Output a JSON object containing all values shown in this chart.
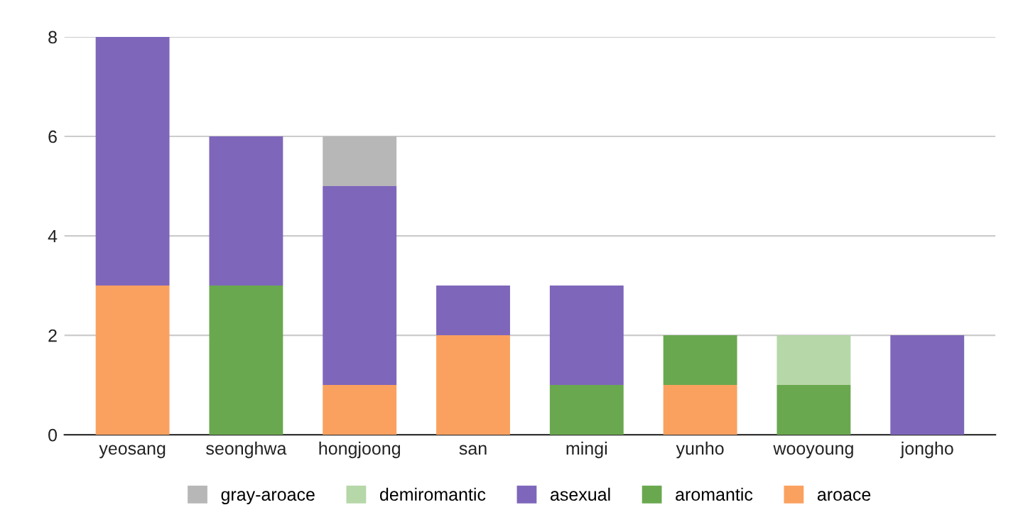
{
  "chart_data": {
    "type": "bar",
    "stacked": true,
    "categories": [
      "yeosang",
      "seonghwa",
      "hongjoong",
      "san",
      "mingi",
      "yunho",
      "wooyoung",
      "jongho"
    ],
    "series": [
      {
        "name": "aroace",
        "color": "#fba15f",
        "values": [
          3,
          null,
          1,
          2,
          null,
          1,
          null,
          null
        ]
      },
      {
        "name": "aromantic",
        "color": "#6aa84f",
        "values": [
          null,
          3,
          null,
          null,
          1,
          1,
          1,
          null
        ]
      },
      {
        "name": "asexual",
        "color": "#7e66bb",
        "values": [
          5,
          3,
          4,
          1,
          2,
          null,
          null,
          2
        ]
      },
      {
        "name": "demiromantic",
        "color": "#b6d7a8",
        "values": [
          null,
          null,
          null,
          null,
          null,
          null,
          1,
          null
        ]
      },
      {
        "name": "gray-aroace",
        "color": "#b7b7b7",
        "values": [
          null,
          null,
          1,
          null,
          null,
          null,
          null,
          null
        ]
      }
    ],
    "ylim": [
      0,
      8
    ],
    "yticks": [
      0,
      2,
      4,
      6,
      8
    ],
    "grid": "y",
    "legend": "bottom"
  }
}
